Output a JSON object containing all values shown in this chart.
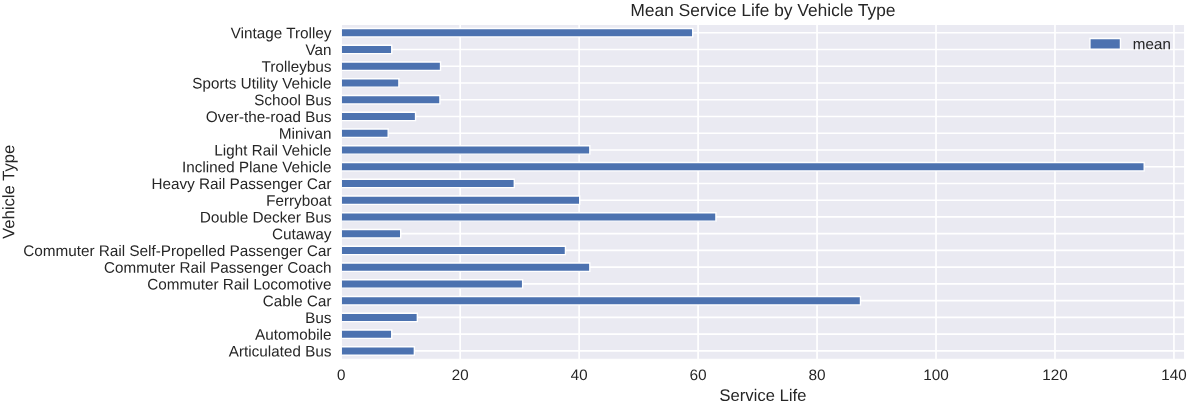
{
  "chart_data": {
    "type": "bar",
    "orientation": "horizontal",
    "title": "Mean Service Life by Vehicle Type",
    "xlabel": "Service Life",
    "ylabel": "Vehicle Type",
    "categories": [
      "Vintage Trolley",
      "Van",
      "Trolleybus",
      "Sports Utility Vehicle",
      "School Bus",
      "Over-the-road Bus",
      "Minivan",
      "Light Rail Vehicle",
      "Inclined Plane Vehicle",
      "Heavy Rail Passenger Car",
      "Ferryboat",
      "Double Decker Bus",
      "Cutaway",
      "Commuter Rail Self-Propelled Passenger Car",
      "Commuter Rail Passenger Coach",
      "Commuter Rail Locomotive",
      "Cable Car",
      "Bus",
      "Automobile",
      "Articulated Bus"
    ],
    "series": [
      {
        "name": "mean",
        "color": "#4c72b0",
        "values": [
          59.1,
          8.5,
          16.7,
          9.7,
          16.6,
          12.5,
          7.9,
          41.8,
          135.0,
          29.1,
          40.1,
          63.0,
          10.0,
          37.7,
          41.8,
          30.5,
          87.3,
          12.8,
          8.5,
          12.3
        ]
      }
    ],
    "xlim": [
      0,
      141.8
    ],
    "xticks": [
      0,
      20,
      40,
      60,
      80,
      100,
      120,
      140
    ],
    "grid": true,
    "legend": "top right"
  }
}
